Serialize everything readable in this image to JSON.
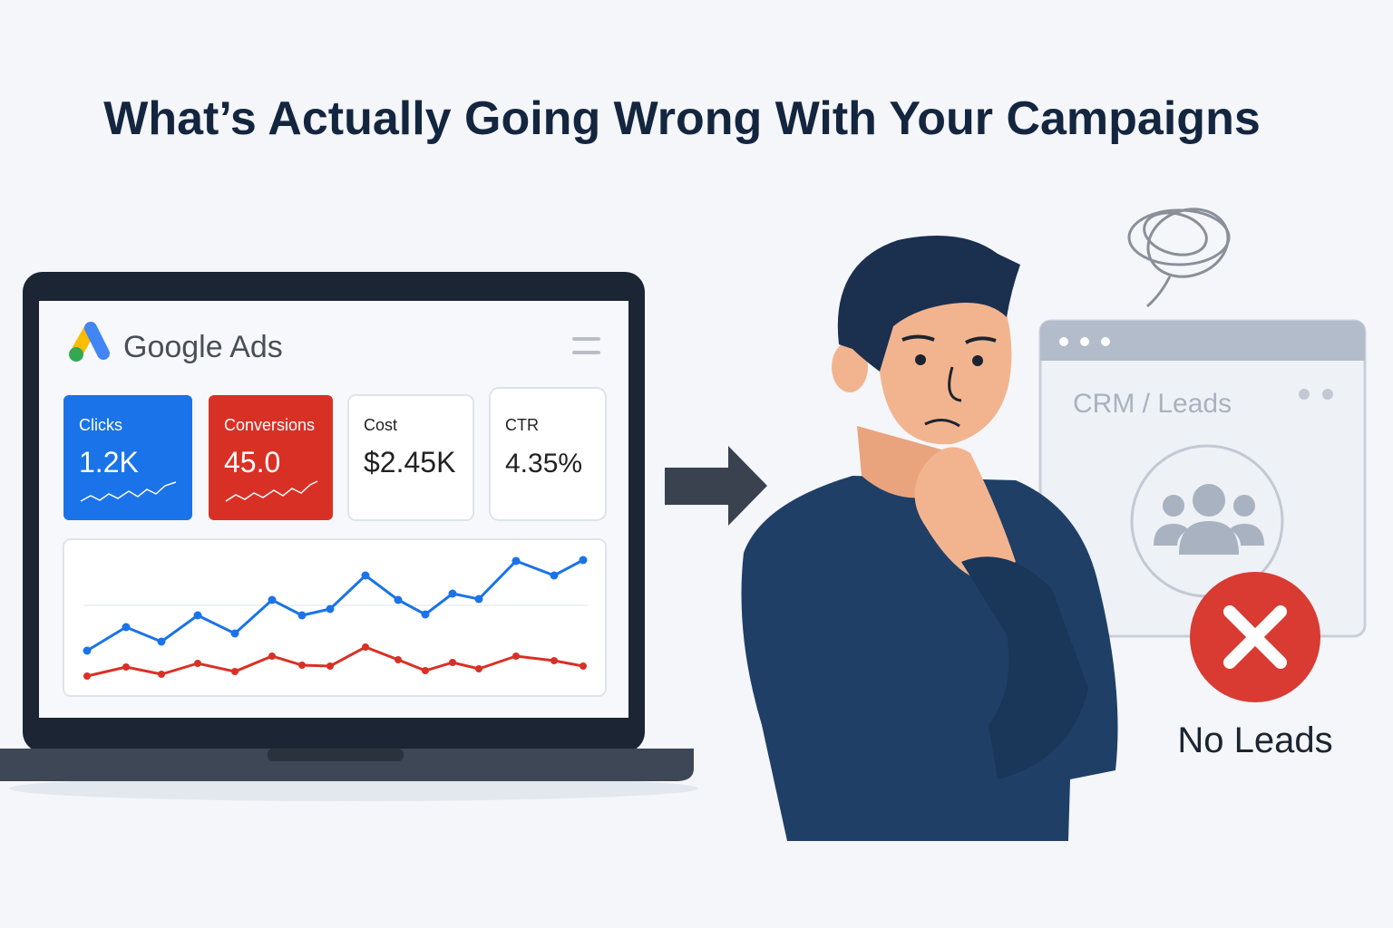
{
  "header": {
    "title": "What’s Actually Going Wrong With Your Campaigns"
  },
  "dashboard": {
    "brand": "Google Ads",
    "metrics": [
      {
        "label": "Clicks",
        "value": "1.2K"
      },
      {
        "label": "Conversions",
        "value": "45.0"
      },
      {
        "label": "Cost",
        "value": "$2.45K"
      },
      {
        "label": "CTR",
        "value": "4.35%"
      }
    ]
  },
  "crm": {
    "title": "CRM / Leads"
  },
  "status": {
    "label": "No Leads"
  }
}
